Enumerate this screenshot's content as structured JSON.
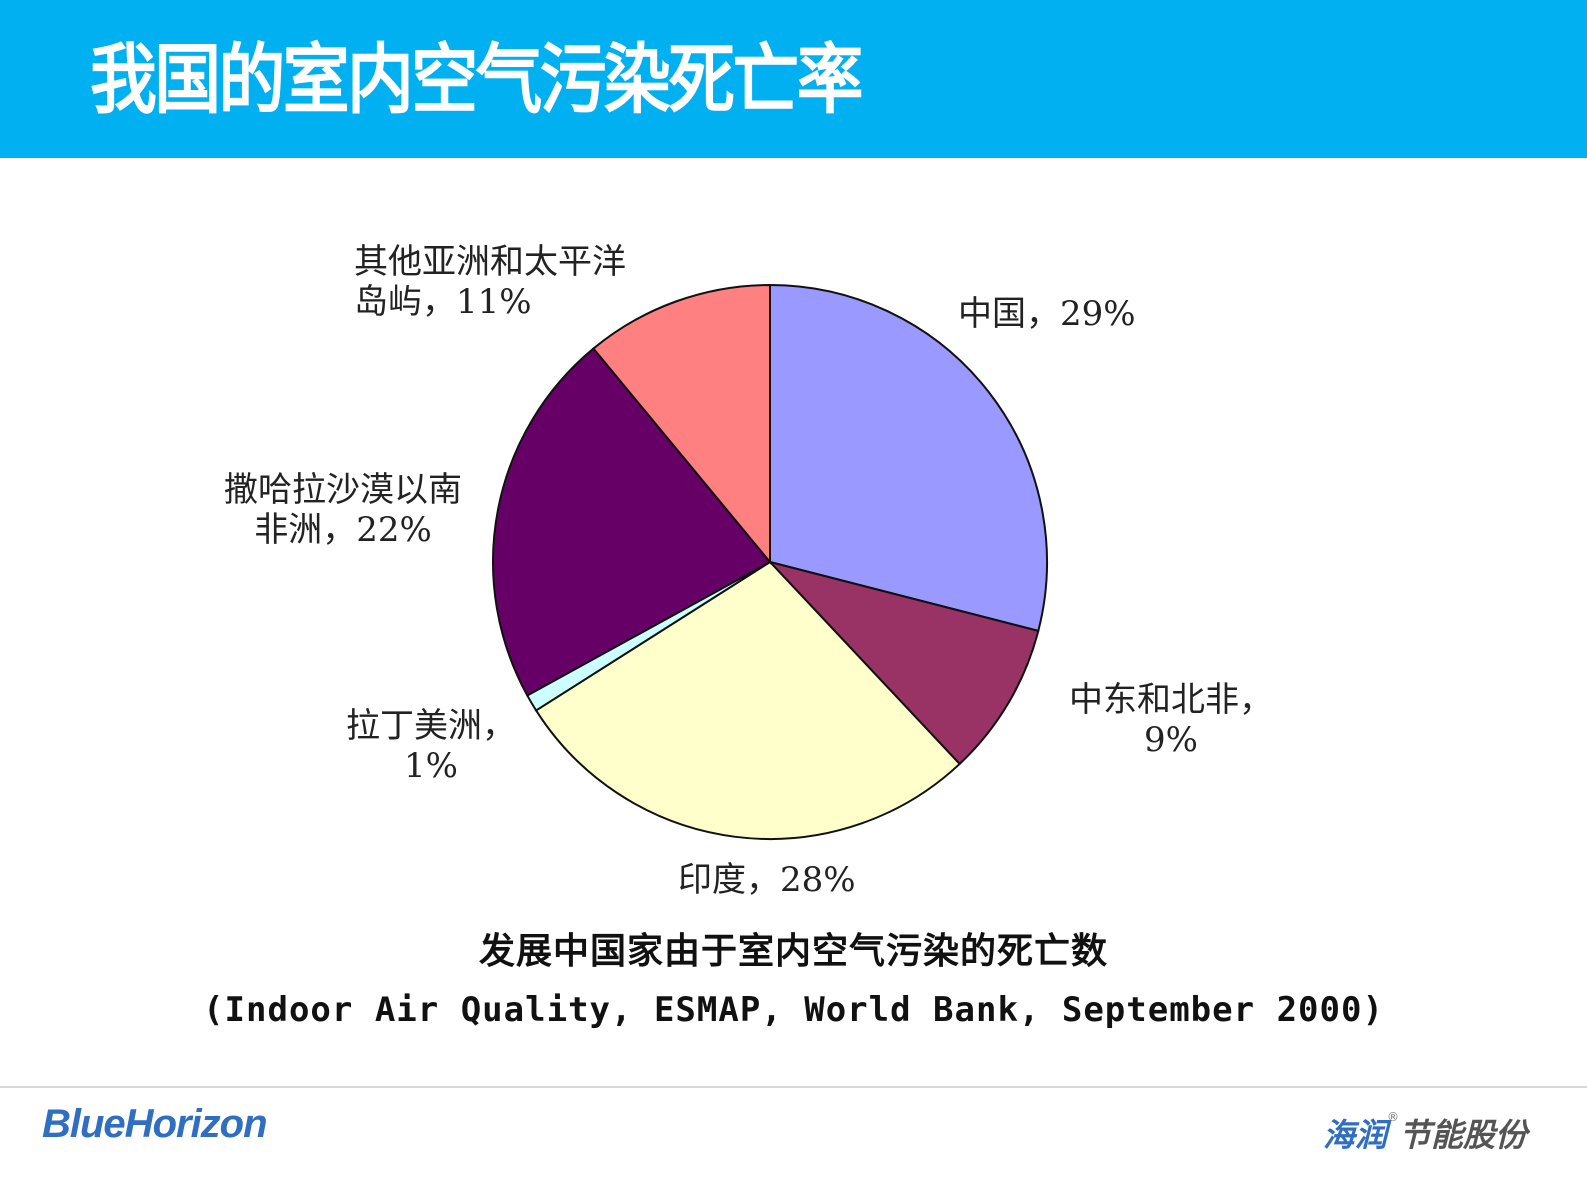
{
  "slide": {
    "title": "我国的室内空气污染死亡率",
    "header_color": "#00B0F0"
  },
  "chart_data": {
    "type": "pie",
    "title": "发展中国家由于室内空气污染的死亡数",
    "source": "(Indoor Air Quality, ESMAP, World Bank, September 2000)",
    "start_angle": "12 o'clock, clockwise",
    "categories": [
      "中国",
      "中东和北非",
      "印度",
      "拉丁美洲",
      "撒哈拉沙漠以南非洲",
      "其他亚洲和太平洋岛屿"
    ],
    "values": [
      29,
      9,
      28,
      1,
      22,
      11
    ],
    "unit": "%",
    "colors": [
      "#9999FF",
      "#993366",
      "#FFFFCC",
      "#CCFFFF",
      "#660066",
      "#FF8080"
    ],
    "labels": [
      {
        "line1": "中国，29%",
        "line2": ""
      },
      {
        "line1": "中东和北非，",
        "line2": "9%"
      },
      {
        "line1": "印度，28%",
        "line2": ""
      },
      {
        "line1": "拉丁美洲，",
        "line2": "1%"
      },
      {
        "line1": "撒哈拉沙漠以南",
        "line2": "非洲，22%"
      },
      {
        "line1": "其他亚洲和太平洋",
        "line2": "岛屿，11%"
      }
    ],
    "legend": "none (data labels)"
  },
  "footer": {
    "logo_left": "BlueHorizon",
    "logo_right_blue": "海润",
    "logo_right_reg": "®",
    "logo_right_gray": "节能股份"
  }
}
